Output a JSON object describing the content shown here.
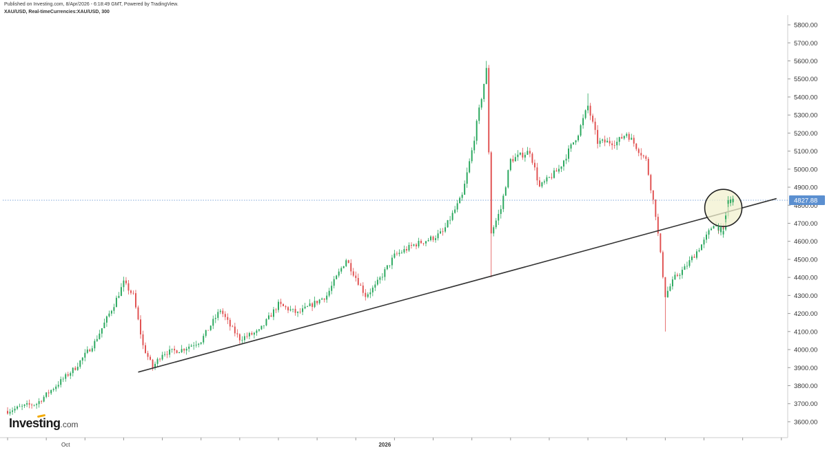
{
  "header": {
    "published": "Published on Investing.com, 8/Apr/2026 - 6:18:49 GMT, Powered by TradingView.",
    "symbol": "XAU/USD, Real-timeCurrencies:XAU/USD, 300"
  },
  "logo": {
    "name": "Investing",
    "suffix": ".com"
  },
  "colors": {
    "up": "#26a65b",
    "down": "#e04e4e",
    "wick": "#555555",
    "trendline": "#333333",
    "price_line": "#7fa7d9",
    "price_tag": "#5b8fd0",
    "highlight": "#f2f0cf"
  },
  "chart_data": {
    "type": "candlestick",
    "symbol": "XAU/USD",
    "y_axis": {
      "range": [
        3530,
        5860
      ],
      "ticks": [
        "5800.00",
        "5700.00",
        "5600.00",
        "5500.00",
        "5400.00",
        "5300.00",
        "5200.00",
        "5100.00",
        "5000.00",
        "4900.00",
        "4800.00",
        "4700.00",
        "4600.00",
        "4500.00",
        "4400.00",
        "4300.00",
        "4200.00",
        "4100.00",
        "4000.00",
        "3900.00",
        "3800.00",
        "3700.00",
        "3600.00"
      ],
      "tick_values": [
        5800,
        5700,
        5600,
        5500,
        5400,
        5300,
        5200,
        5100,
        5000,
        4900,
        4800,
        4700,
        4600,
        4500,
        4400,
        4300,
        4200,
        4100,
        4000,
        3900,
        3800,
        3700,
        3600
      ]
    },
    "x_axis": {
      "labels": [
        {
          "text": "Oct",
          "bold": false,
          "index": 6
        },
        {
          "text": "2026",
          "bold": true,
          "index": 39
        }
      ],
      "count": 80
    },
    "current_price": {
      "value": 4827.88,
      "label": "4827.88"
    },
    "trendline": {
      "start": {
        "index": 13.5,
        "price": 3875
      },
      "end": {
        "index": 79.5,
        "price": 4837
      }
    },
    "highlight": {
      "index": 74,
      "price": 4785
    },
    "close_path": [
      [
        0,
        3660
      ],
      [
        2,
        3690
      ],
      [
        3,
        3700
      ],
      [
        5,
        3800
      ],
      [
        7,
        3900
      ],
      [
        9,
        4040
      ],
      [
        11,
        4250
      ],
      [
        12,
        4370
      ],
      [
        13,
        4300
      ],
      [
        14,
        4020
      ],
      [
        15,
        3900
      ],
      [
        16,
        3980
      ],
      [
        18,
        4000
      ],
      [
        20,
        4050
      ],
      [
        22,
        4220
      ],
      [
        23,
        4130
      ],
      [
        24,
        4060
      ],
      [
        26,
        4100
      ],
      [
        28,
        4250
      ],
      [
        30,
        4200
      ],
      [
        33,
        4300
      ],
      [
        35,
        4500
      ],
      [
        37,
        4300
      ],
      [
        38,
        4350
      ],
      [
        40,
        4520
      ],
      [
        42,
        4580
      ],
      [
        44,
        4620
      ],
      [
        45,
        4650
      ],
      [
        47,
        4850
      ],
      [
        48,
        5100
      ],
      [
        49,
        5400
      ],
      [
        49.5,
        5550
      ],
      [
        50,
        4650
      ],
      [
        51,
        4780
      ],
      [
        52,
        5050
      ],
      [
        54,
        5100
      ],
      [
        55,
        4900
      ],
      [
        57,
        5000
      ],
      [
        59,
        5200
      ],
      [
        60,
        5350
      ],
      [
        61,
        5150
      ],
      [
        63,
        5150
      ],
      [
        64,
        5200
      ],
      [
        66,
        5050
      ],
      [
        67,
        4750
      ],
      [
        68,
        4300
      ],
      [
        69,
        4400
      ],
      [
        70,
        4450
      ],
      [
        72,
        4600
      ],
      [
        73,
        4700
      ],
      [
        74,
        4650
      ],
      [
        74.5,
        4820
      ],
      [
        75,
        4828
      ]
    ],
    "wick_extremes": [
      {
        "index": 49.5,
        "high": 5600
      },
      {
        "index": 50,
        "low": 4400
      },
      {
        "index": 60,
        "high": 5420
      },
      {
        "index": 68,
        "low": 4100
      },
      {
        "index": 74.5,
        "high": 4850
      }
    ]
  }
}
